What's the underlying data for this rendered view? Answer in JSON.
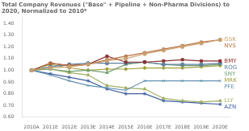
{
  "chart_data": {
    "type": "line",
    "title": "Total Company Revenues (\"Base\" + Pipeline + Non-Pharma Divisions) to 2020, Normalized to 2010*",
    "categories": [
      "2010A",
      "2011E",
      "2012E",
      "2013E",
      "2014E",
      "2015E",
      "2016E",
      "2017E",
      "2018E",
      "2019E",
      "2020E"
    ],
    "ylim": [
      0.6,
      1.45
    ],
    "yticks": [
      {
        "value": 0.6,
        "label": "0.60"
      },
      {
        "value": 0.7,
        "label": "0.70"
      },
      {
        "value": 0.8,
        "label": "0.80"
      },
      {
        "value": 0.9,
        "label": "0.90"
      },
      {
        "value": 1.0,
        "label": "1.00"
      },
      {
        "value": 1.1,
        "label": "1.10"
      },
      {
        "value": 1.2,
        "label": "1.20"
      },
      {
        "value": 1.3,
        "label": "1.30"
      },
      {
        "value": 1.4,
        "label": "1.40"
      }
    ],
    "grid": false,
    "series": [
      {
        "name": "GSK",
        "color": "#c8a06e",
        "marker": "circle",
        "values": [
          1.0,
          1.02,
          1.03,
          1.05,
          1.08,
          1.1,
          1.14,
          1.17,
          1.2,
          1.23,
          1.26
        ]
      },
      {
        "name": "NVS",
        "color": "#b87040",
        "marker": "square",
        "values": [
          1.0,
          1.06,
          1.04,
          1.05,
          1.09,
          1.12,
          1.15,
          1.18,
          1.21,
          1.24,
          1.26
        ]
      },
      {
        "name": "BMY",
        "color": "#8b3030",
        "marker": "square",
        "values": [
          1.0,
          1.06,
          1.04,
          1.05,
          1.12,
          1.07,
          1.07,
          1.08,
          1.09,
          1.08,
          1.08
        ]
      },
      {
        "name": "ROG",
        "color": "#6080a0",
        "marker": "circle",
        "values": [
          1.0,
          1.03,
          1.05,
          1.06,
          1.06,
          1.06,
          1.07,
          1.05,
          1.05,
          1.05,
          1.06
        ]
      },
      {
        "name": "SNY",
        "color": "#70a070",
        "marker": "triangle",
        "values": [
          1.0,
          1.01,
          0.99,
          1.0,
          0.98,
          1.05,
          1.07,
          1.05,
          1.04,
          1.04,
          1.05
        ]
      },
      {
        "name": "MRK",
        "color": "#a0a040",
        "marker": "diamond",
        "values": [
          1.0,
          1.05,
          1.02,
          1.0,
          1.01,
          1.01,
          1.02,
          1.02,
          1.02,
          1.03,
          1.04
        ]
      },
      {
        "name": "PFE",
        "color": "#6090b0",
        "marker": "x",
        "values": [
          1.0,
          0.96,
          0.91,
          0.87,
          0.85,
          0.83,
          0.91,
          0.91,
          0.91,
          0.91,
          0.91
        ]
      },
      {
        "name": "LLY",
        "color": "#a0b060",
        "marker": "triangle",
        "values": [
          1.0,
          1.01,
          0.98,
          0.96,
          0.87,
          0.85,
          0.84,
          0.76,
          0.74,
          0.73,
          0.74
        ]
      },
      {
        "name": "AZN",
        "color": "#4060a0",
        "marker": "star",
        "values": [
          1.0,
          0.97,
          0.94,
          0.91,
          0.84,
          0.8,
          0.8,
          0.74,
          0.73,
          0.72,
          0.71
        ]
      }
    ]
  }
}
